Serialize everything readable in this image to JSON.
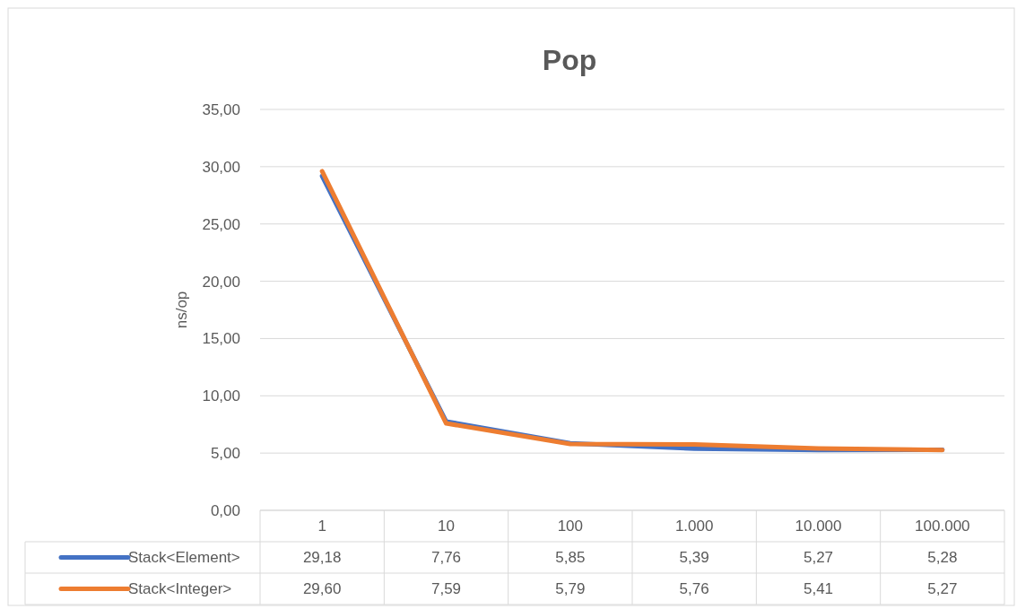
{
  "chart_data": {
    "type": "line",
    "title": "Pop",
    "ylabel": "ns/op",
    "categories": [
      "1",
      "10",
      "100",
      "1.000",
      "10.000",
      "100.000"
    ],
    "series": [
      {
        "name": "Stack<Element>",
        "color": "#4472c4",
        "values": [
          29.18,
          7.76,
          5.85,
          5.39,
          5.27,
          5.28
        ],
        "value_labels": [
          "29,18",
          "7,76",
          "5,85",
          "5,39",
          "5,27",
          "5,28"
        ]
      },
      {
        "name": "Stack<Integer>",
        "color": "#ed7d31",
        "values": [
          29.6,
          7.59,
          5.79,
          5.76,
          5.41,
          5.27
        ],
        "value_labels": [
          "29,60",
          "7,59",
          "5,79",
          "5,76",
          "5,41",
          "5,27"
        ]
      }
    ],
    "ylim": [
      0,
      35
    ],
    "yticks": [
      {
        "value": 0,
        "label": "0,00"
      },
      {
        "value": 5,
        "label": "5,00"
      },
      {
        "value": 10,
        "label": "10,00"
      },
      {
        "value": 15,
        "label": "15,00"
      },
      {
        "value": 20,
        "label": "20,00"
      },
      {
        "value": 25,
        "label": "25,00"
      },
      {
        "value": 30,
        "label": "30,00"
      },
      {
        "value": 35,
        "label": "35,00"
      }
    ],
    "grid": "y",
    "legend": "bottom",
    "line_style": "solid",
    "marker": "none"
  }
}
